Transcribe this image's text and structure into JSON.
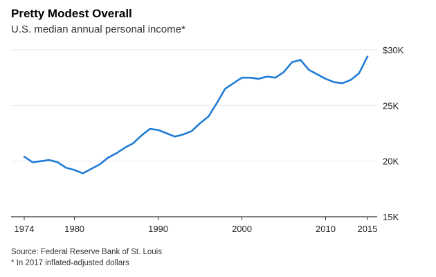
{
  "header": {
    "title": "Pretty Modest Overall",
    "subtitle": "U.S. median annual personal income*"
  },
  "footer": {
    "source": "Source: Federal Reserve Bank of St. Louis",
    "note": "* In 2017 inflated-adjusted dollars"
  },
  "colors": {
    "line": "#1f7bd6",
    "grid": "#e8e8e8",
    "axis": "#333333"
  },
  "chart_data": {
    "type": "line",
    "title": "Pretty Modest Overall",
    "subtitle": "U.S. median annual personal income*",
    "xlabel": "",
    "ylabel": "",
    "xlim": [
      1974,
      2015
    ],
    "ylim": [
      15000,
      30000
    ],
    "x_ticks": [
      {
        "value": 1974,
        "label": "1974"
      },
      {
        "value": 1980,
        "label": "1980"
      },
      {
        "value": 1990,
        "label": "1990"
      },
      {
        "value": 2000,
        "label": "2000"
      },
      {
        "value": 2010,
        "label": "2010"
      },
      {
        "value": 2015,
        "label": "2015"
      }
    ],
    "y_ticks": [
      {
        "value": 15000,
        "label": "15K"
      },
      {
        "value": 20000,
        "label": "20K"
      },
      {
        "value": 25000,
        "label": "25K"
      },
      {
        "value": 30000,
        "label": "$30K"
      }
    ],
    "y_axis_side": "right",
    "grid": "horizontal",
    "series": [
      {
        "x": [
          1974,
          1975,
          1976,
          1977,
          1978,
          1979,
          1980,
          1981,
          1982,
          1983,
          1984,
          1985,
          1986,
          1987,
          1988,
          1989,
          1990,
          1991,
          1992,
          1993,
          1994,
          1995,
          1996,
          1997,
          1998,
          1999,
          2000,
          2001,
          2002,
          2003,
          2004,
          2005,
          2006,
          2007,
          2008,
          2009,
          2010,
          2011,
          2012,
          2013,
          2014,
          2015
        ],
        "y": [
          20400,
          19900,
          20000,
          20100,
          19900,
          19400,
          19200,
          18900,
          19300,
          19700,
          20300,
          20700,
          21200,
          21600,
          22300,
          22900,
          22800,
          22500,
          22200,
          22400,
          22700,
          23400,
          24000,
          25200,
          26500,
          27000,
          27500,
          27500,
          27400,
          27600,
          27500,
          28000,
          28900,
          29100,
          28200,
          27800,
          27400,
          27100,
          27000,
          27300,
          27900,
          29400
        ]
      }
    ]
  }
}
